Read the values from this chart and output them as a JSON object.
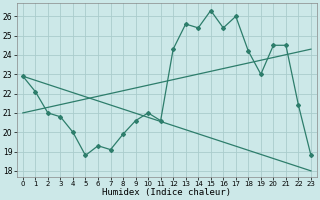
{
  "xlabel": "Humidex (Indice chaleur)",
  "bg_color": "#cce8e8",
  "grid_color": "#aacccc",
  "line_color": "#2d7d6b",
  "xlim": [
    -0.5,
    23.5
  ],
  "ylim": [
    17.7,
    26.7
  ],
  "yticks": [
    18,
    19,
    20,
    21,
    22,
    23,
    24,
    25,
    26
  ],
  "xticks": [
    0,
    1,
    2,
    3,
    4,
    5,
    6,
    7,
    8,
    9,
    10,
    11,
    12,
    13,
    14,
    15,
    16,
    17,
    18,
    19,
    20,
    21,
    22,
    23
  ],
  "curve1_x": [
    0,
    1,
    2,
    3,
    4,
    5,
    6,
    7,
    8,
    9,
    10,
    11,
    12,
    13,
    14,
    15,
    16,
    17,
    18,
    19,
    20,
    21,
    22,
    23
  ],
  "curve1_y": [
    22.9,
    22.1,
    21.0,
    20.8,
    20.0,
    18.8,
    19.3,
    19.1,
    19.9,
    20.6,
    21.0,
    20.6,
    24.3,
    25.6,
    25.4,
    26.3,
    25.4,
    26.0,
    24.2,
    23.0,
    24.5,
    24.5,
    21.4,
    18.8
  ],
  "curve2_x": [
    0,
    23
  ],
  "curve2_y": [
    22.9,
    18.0
  ],
  "curve3_x": [
    0,
    23
  ],
  "curve3_y": [
    21.0,
    24.3
  ]
}
